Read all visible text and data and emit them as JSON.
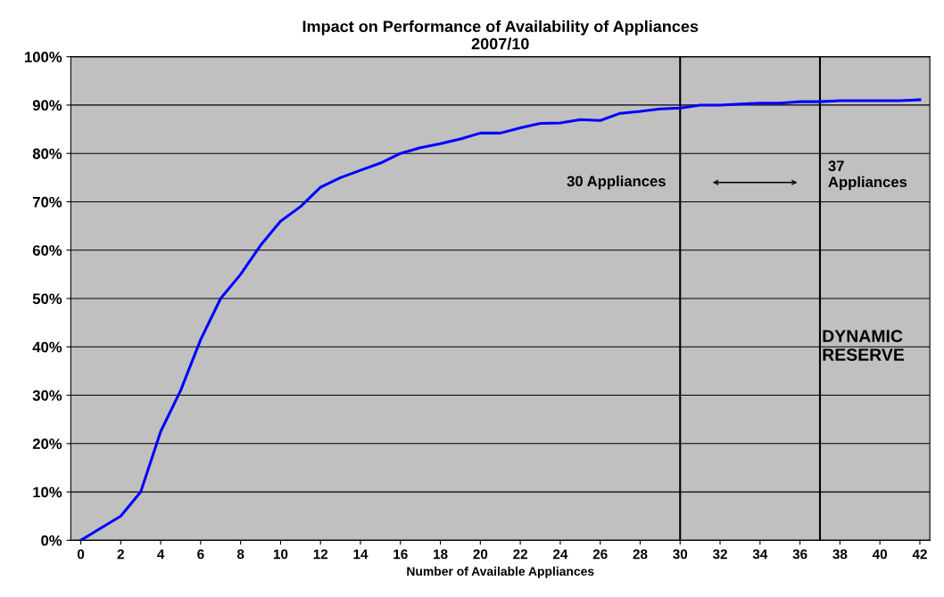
{
  "chart_data": {
    "type": "line",
    "title": "Impact on Performance of Availability of Appliances\n2007/10",
    "xlabel": "Number of Available Appliances",
    "x": [
      0,
      1,
      2,
      3,
      4,
      5,
      6,
      7,
      8,
      9,
      10,
      11,
      12,
      13,
      14,
      15,
      16,
      17,
      18,
      19,
      20,
      21,
      22,
      23,
      24,
      25,
      26,
      27,
      28,
      29,
      30,
      31,
      32,
      33,
      34,
      35,
      36,
      37,
      38,
      39,
      40,
      41,
      42
    ],
    "series": [
      {
        "color": "#0000ff",
        "values": [
          0,
          2.5,
          5,
          10,
          22.5,
          31,
          41.5,
          50,
          55,
          61,
          66,
          69,
          73,
          75,
          76.5,
          78,
          80,
          81.2,
          82,
          83,
          84.2,
          84.2,
          85.3,
          86.2,
          86.3,
          87,
          86.8,
          88.3,
          88.7,
          89.2,
          89.4,
          90,
          90,
          90.2,
          90.4,
          90.4,
          90.7,
          90.7,
          90.9,
          90.9,
          90.9,
          90.9,
          91.1
        ]
      }
    ],
    "xlim": [
      -0.5,
      42.5
    ],
    "xticks": [
      0,
      2,
      4,
      6,
      8,
      10,
      12,
      14,
      16,
      18,
      20,
      22,
      24,
      26,
      28,
      30,
      32,
      34,
      36,
      38,
      40,
      42
    ],
    "ylim": [
      0,
      100
    ],
    "yticks": [
      {
        "value": 0,
        "label": "0%"
      },
      {
        "value": 10,
        "label": "10%"
      },
      {
        "value": 20,
        "label": "20%"
      },
      {
        "value": 30,
        "label": "30%"
      },
      {
        "value": 40,
        "label": "40%"
      },
      {
        "value": 50,
        "label": "50%"
      },
      {
        "value": 60,
        "label": "60%"
      },
      {
        "value": 70,
        "label": "70%"
      },
      {
        "value": 80,
        "label": "80%"
      },
      {
        "value": 90,
        "label": "90%"
      },
      {
        "value": 100,
        "label": "100%"
      }
    ],
    "ref_lines": [
      {
        "axis": "x",
        "value": 30,
        "label": "30 Appliances",
        "color": "#000000"
      },
      {
        "axis": "x",
        "value": 37,
        "label": "37\nAppliances",
        "color": "#000000"
      }
    ],
    "annotations": [
      {
        "text": "DYNAMIC\nRESERVE",
        "x": 37,
        "y": 40
      }
    ],
    "grid": "y",
    "marker": "none",
    "line_style": "solid",
    "legend": false
  }
}
